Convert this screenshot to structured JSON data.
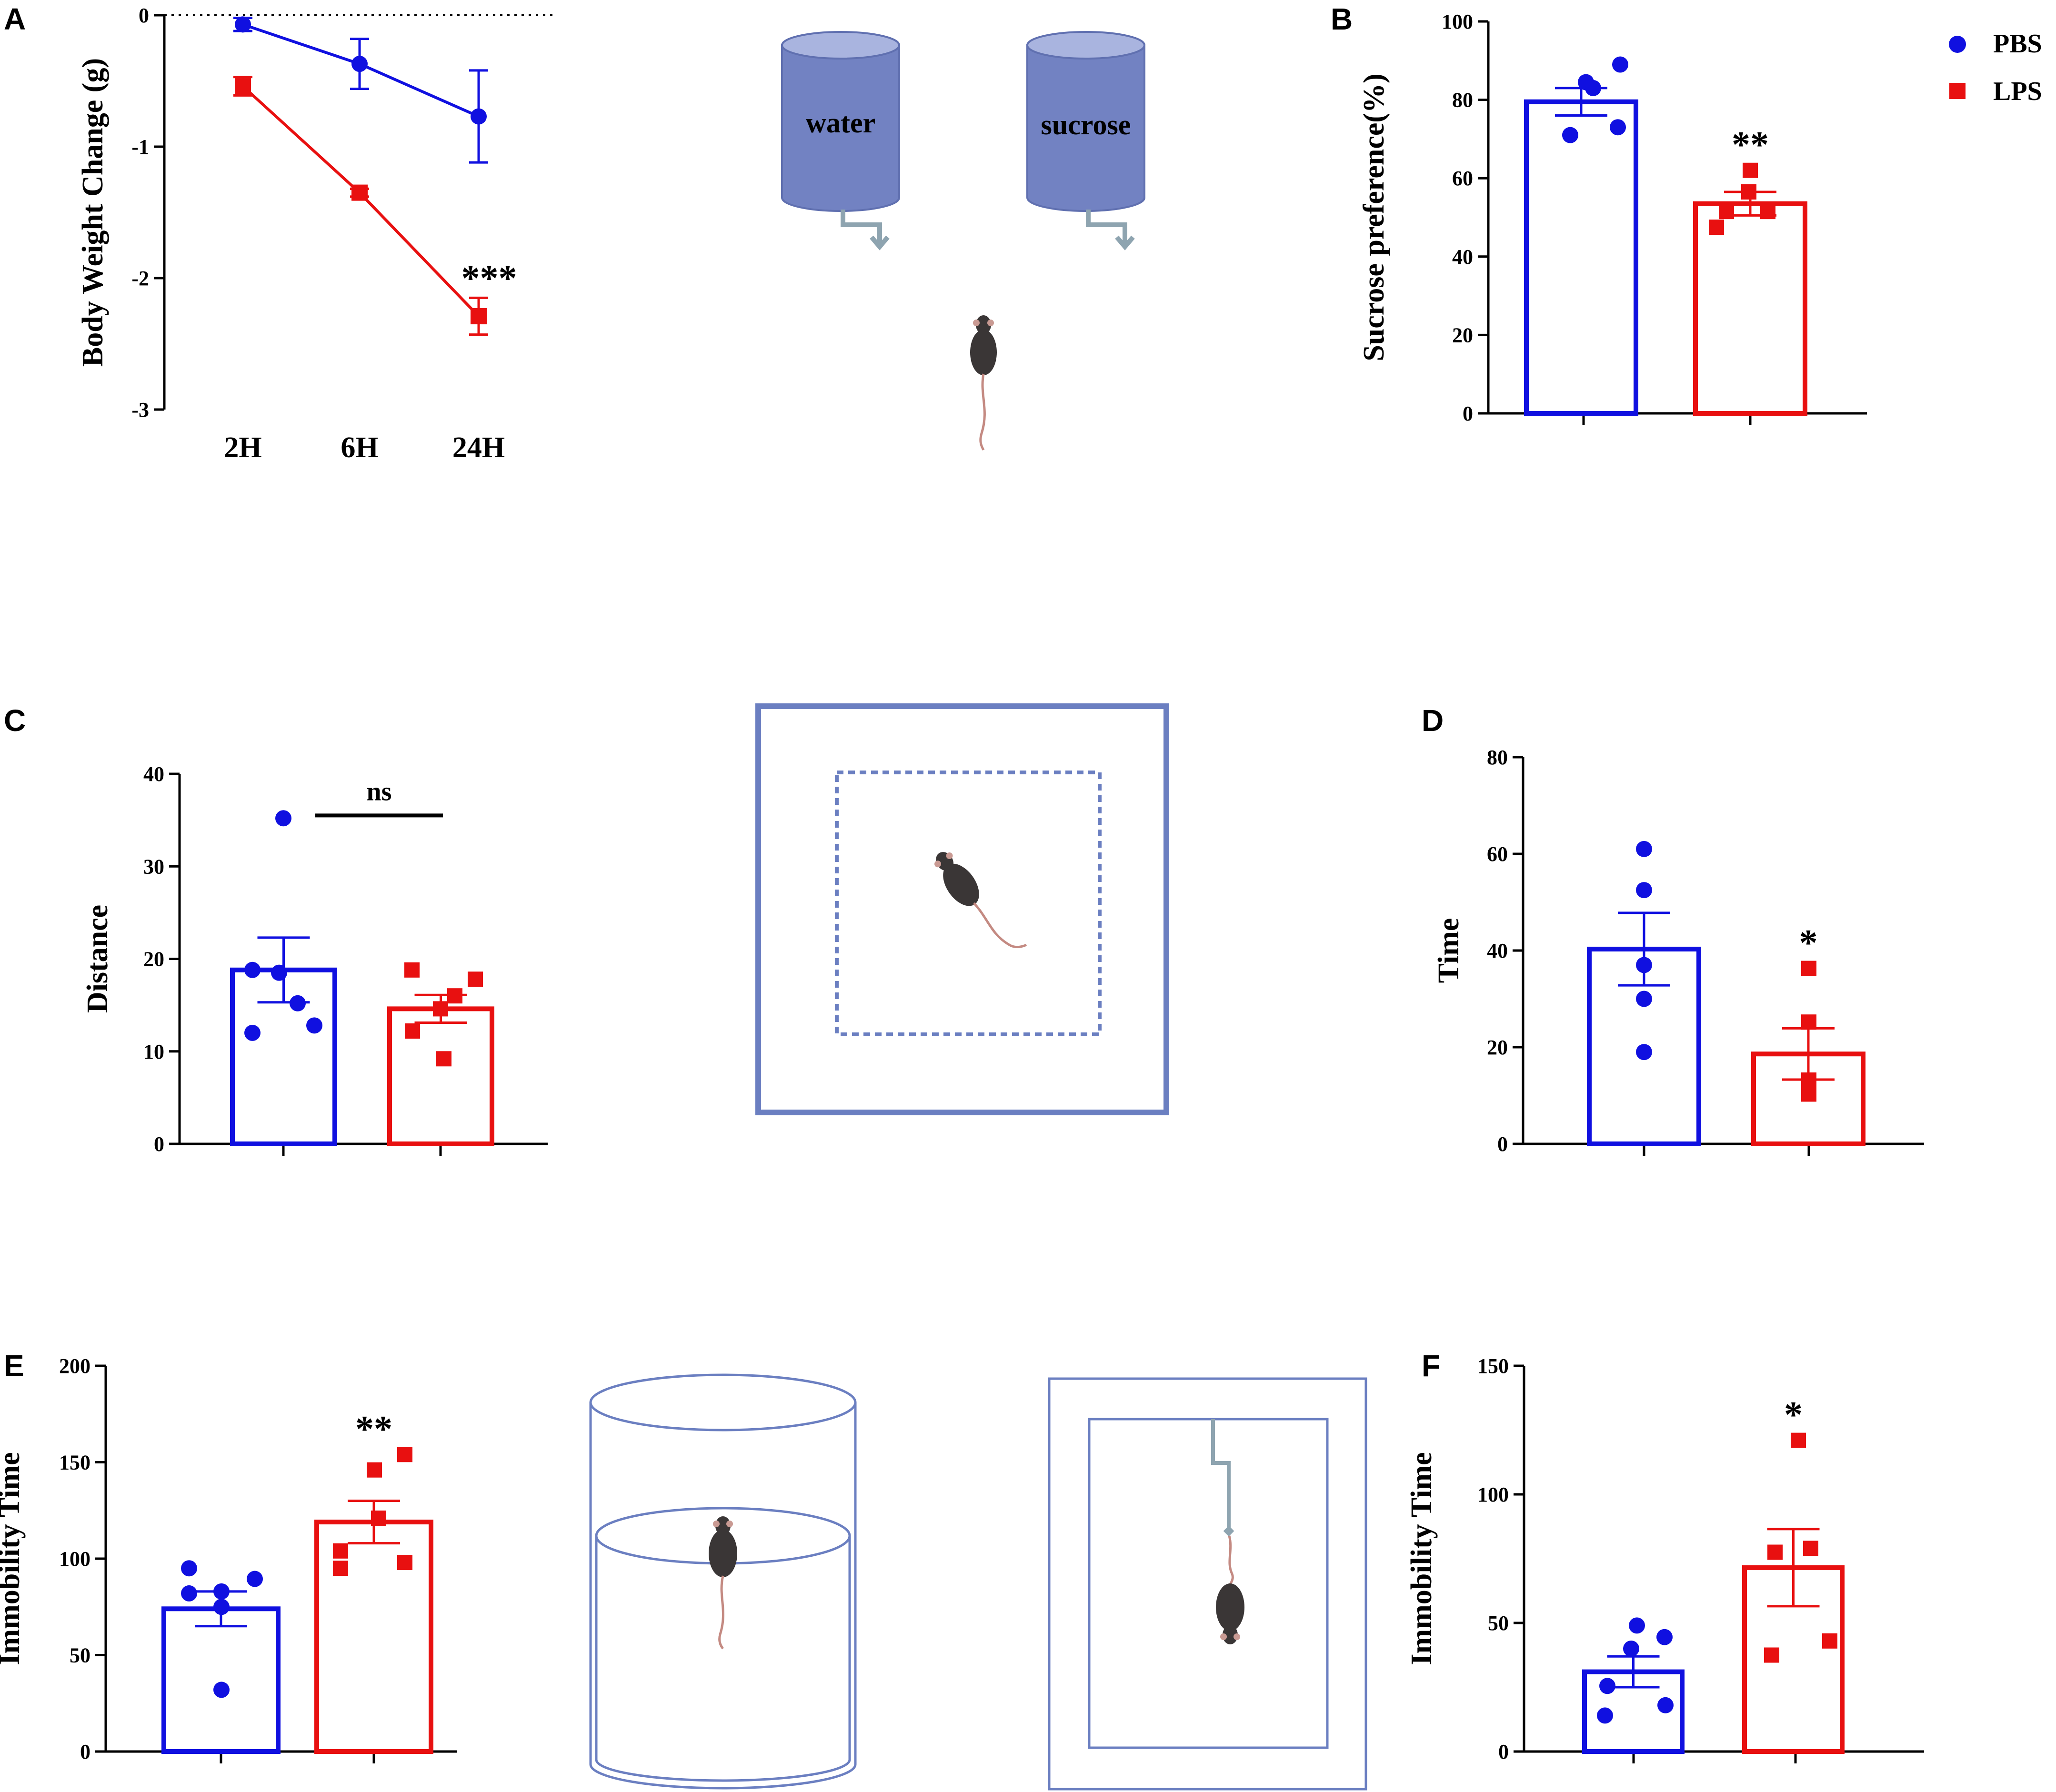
{
  "colors": {
    "pbs": "#1010e0",
    "lps": "#e81010",
    "axis": "#000000",
    "schematic": "#6b7fc1",
    "schematic_line": "#7f96a8"
  },
  "legend": {
    "pbs": "PBS",
    "lps": "LPS"
  },
  "schematics": {
    "water_label": "water",
    "sucrose_label": "sucrose"
  },
  "chart_data": [
    {
      "panel": "A",
      "type": "line",
      "title": "",
      "xlabel": "",
      "ylabel": "Body Weight Change (g)",
      "categories": [
        "2H",
        "6H",
        "24H"
      ],
      "ylim": [
        -3,
        0
      ],
      "yticks": [
        "0",
        "-1",
        "-2",
        "-3"
      ],
      "reference_line": 0,
      "annotation": "***",
      "series": [
        {
          "name": "PBS",
          "values": [
            -0.07,
            -0.37,
            -0.77
          ],
          "sem": [
            0.05,
            0.19,
            0.35
          ]
        },
        {
          "name": "LPS",
          "values": [
            -0.54,
            -1.35,
            -2.29
          ],
          "sem": [
            0.07,
            0.03,
            0.14
          ]
        }
      ]
    },
    {
      "panel": "B",
      "type": "bar",
      "title": "",
      "xlabel": "",
      "ylabel": "Sucrose preference(%)",
      "ylim": [
        0,
        100
      ],
      "yticks": [
        "0",
        "20",
        "40",
        "60",
        "80",
        "100"
      ],
      "annotation": "**",
      "series": [
        {
          "name": "PBS",
          "mean": 79.5,
          "sem": 3.5,
          "points": [
            84.5,
            89,
            83,
            71,
            73
          ]
        },
        {
          "name": "LPS",
          "mean": 53.5,
          "sem": 3,
          "points": [
            62,
            56.5,
            51.5,
            51.5,
            47.5
          ]
        }
      ]
    },
    {
      "panel": "C",
      "type": "bar",
      "title": "",
      "xlabel": "",
      "ylabel": "Distance",
      "ylim": [
        0,
        40
      ],
      "yticks": [
        "0",
        "10",
        "20",
        "30",
        "40"
      ],
      "annotation": "ns",
      "series": [
        {
          "name": "PBS",
          "mean": 18.8,
          "sem": 3.5,
          "points": [
            35.2,
            18.8,
            15.2,
            12.0,
            12.8,
            18.5
          ]
        },
        {
          "name": "LPS",
          "mean": 14.6,
          "sem": 1.5,
          "points": [
            18.8,
            17.8,
            16.0,
            14.6,
            12.2,
            9.2
          ]
        }
      ]
    },
    {
      "panel": "D",
      "type": "bar",
      "title": "",
      "xlabel": "",
      "ylabel": "Time",
      "ylim": [
        0,
        80
      ],
      "yticks": [
        "0",
        "20",
        "40",
        "60",
        "80"
      ],
      "annotation": "*",
      "series": [
        {
          "name": "PBS",
          "mean": 40.3,
          "sem": 7.5,
          "points": [
            61,
            52.5,
            37,
            30,
            19
          ]
        },
        {
          "name": "LPS",
          "mean": 18.6,
          "sem": 5.3,
          "points": [
            36.3,
            25.2,
            13.2,
            10.3,
            10.5
          ]
        }
      ]
    },
    {
      "panel": "E",
      "type": "bar",
      "title": "",
      "xlabel": "",
      "ylabel": "Immobility Time",
      "ylim": [
        0,
        200
      ],
      "yticks": [
        "0",
        "50",
        "100",
        "150",
        "200"
      ],
      "annotation": "**",
      "series": [
        {
          "name": "PBS",
          "mean": 74,
          "sem": 9,
          "points": [
            95,
            89.5,
            83,
            82,
            75,
            32
          ]
        },
        {
          "name": "LPS",
          "mean": 119,
          "sem": 11,
          "points": [
            154,
            146,
            121,
            104,
            98,
            95
          ]
        }
      ]
    },
    {
      "panel": "F",
      "type": "bar",
      "title": "",
      "xlabel": "",
      "ylabel": "Immobility Time",
      "ylim": [
        0,
        150
      ],
      "yticks": [
        "0",
        "50",
        "100",
        "150"
      ],
      "annotation": "*",
      "series": [
        {
          "name": "PBS",
          "mean": 31,
          "sem": 6,
          "points": [
            49,
            44.5,
            40,
            25.5,
            18,
            14
          ]
        },
        {
          "name": "LPS",
          "mean": 71.5,
          "sem": 15,
          "points": [
            121,
            79,
            77.5,
            43,
            37.5
          ]
        }
      ]
    }
  ]
}
